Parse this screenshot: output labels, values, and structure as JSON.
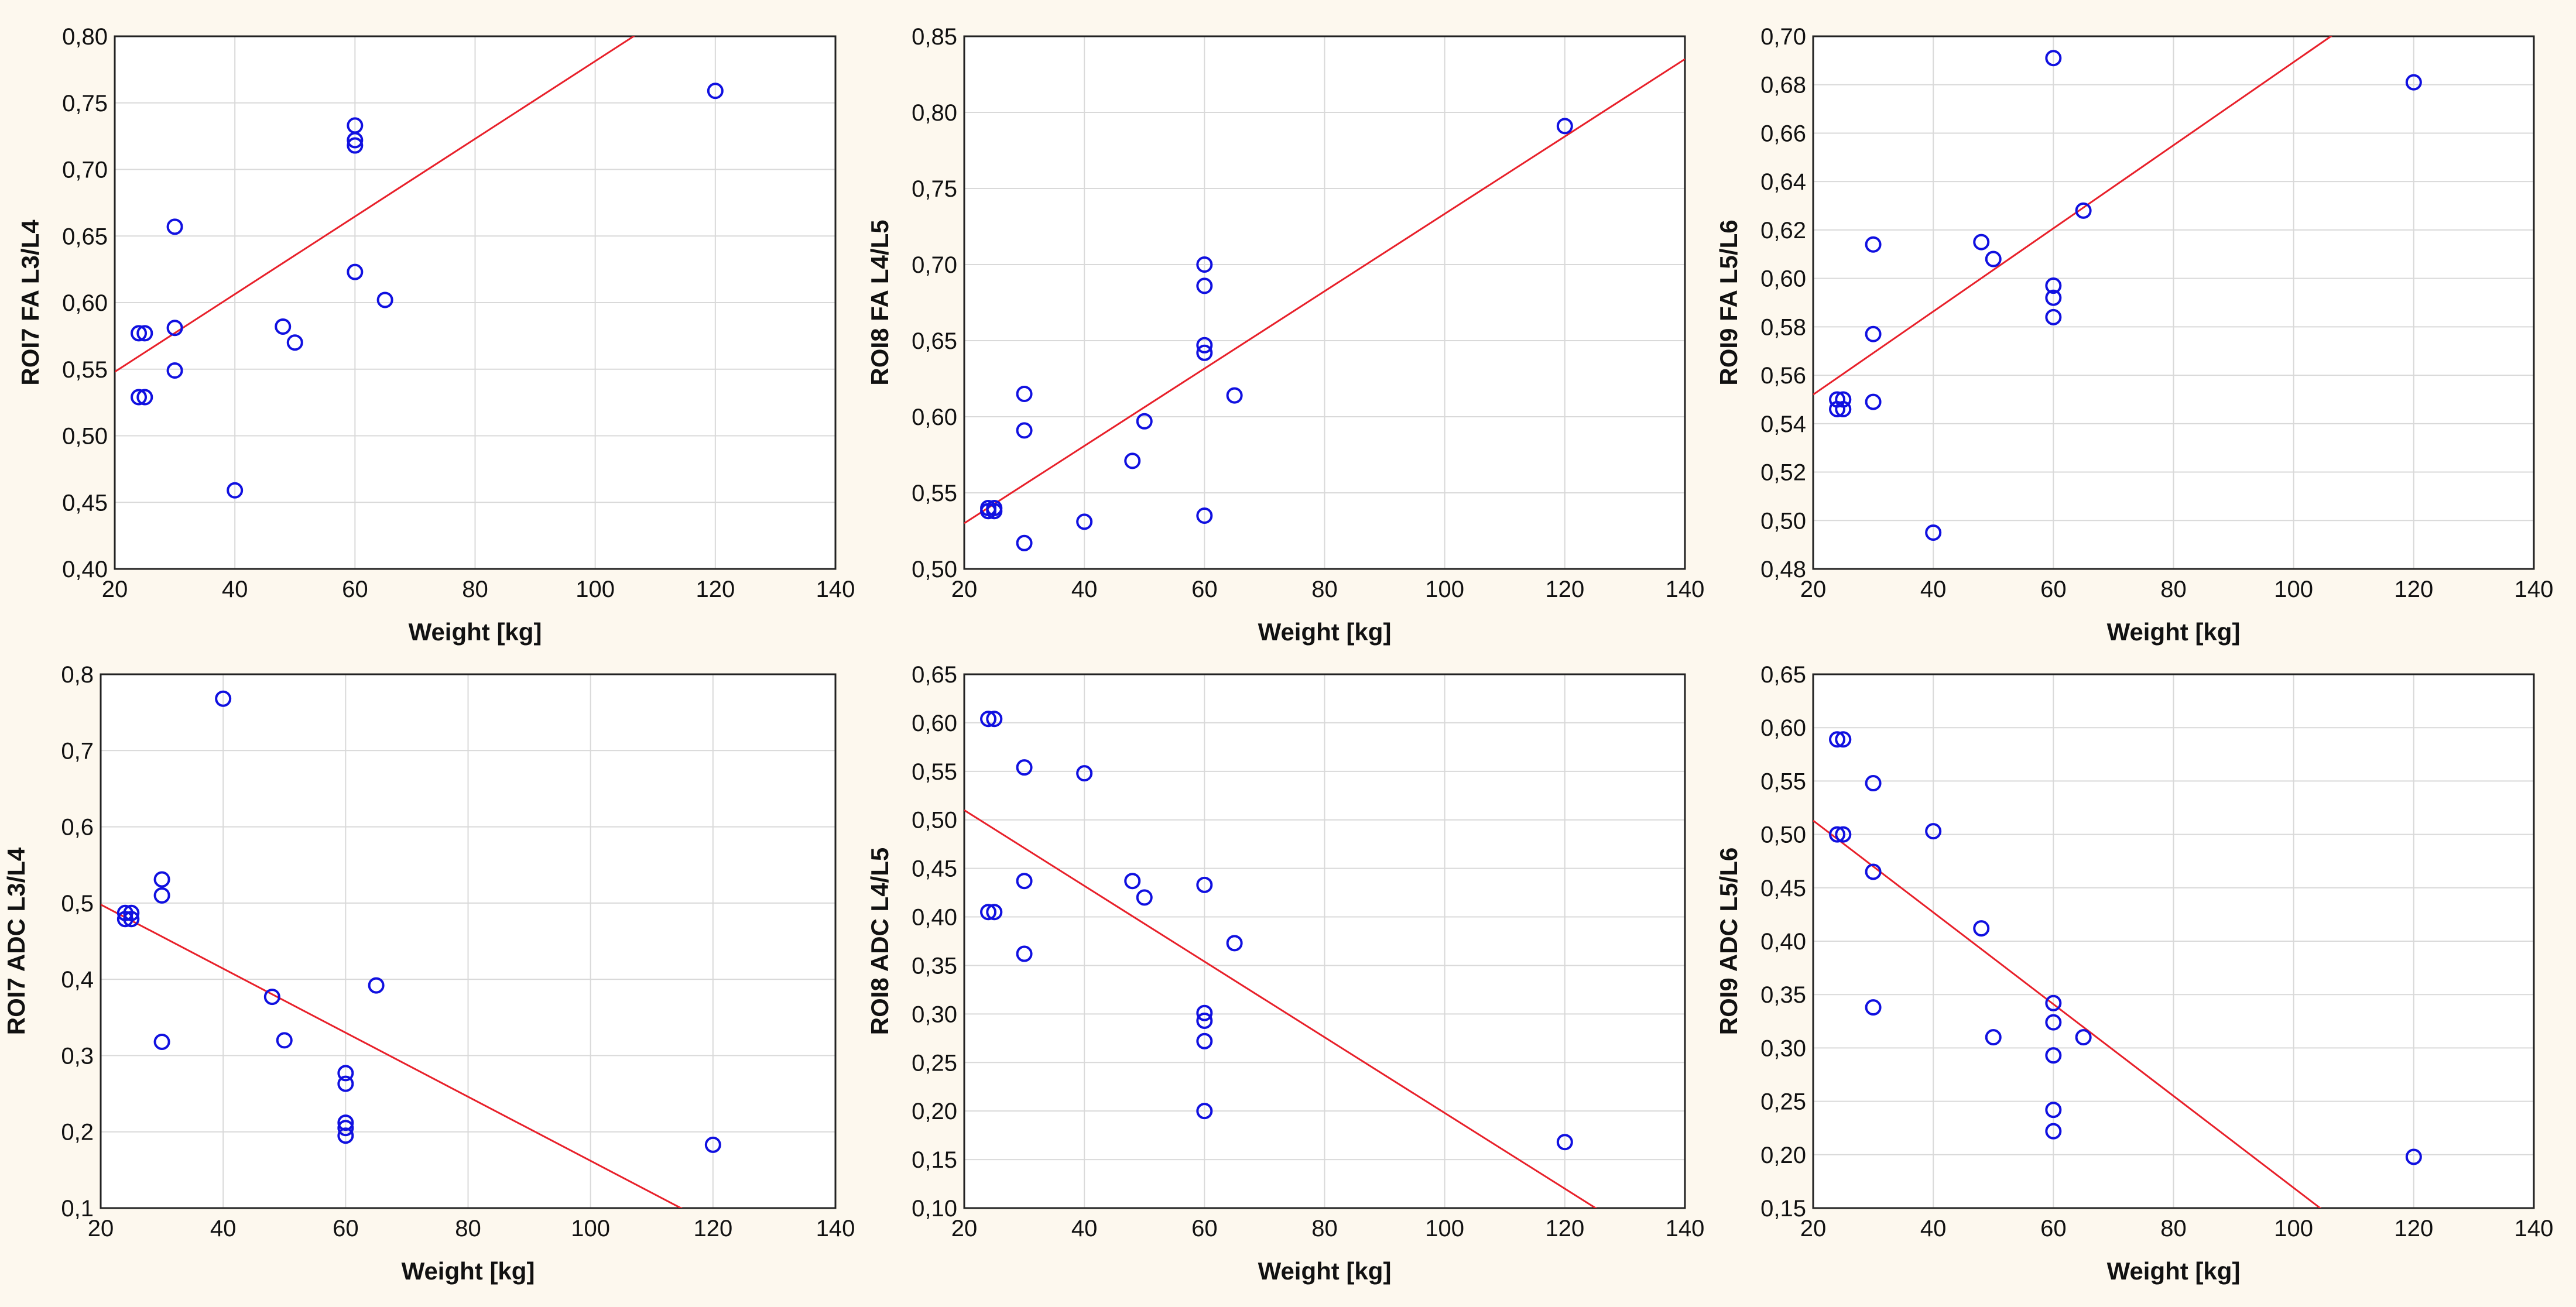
{
  "colors": {
    "background": "#fdf8ee",
    "plot_background": "#ffffff",
    "grid": "#d9d9d9",
    "marker": "#1010e0",
    "fit_line": "#e8202a"
  },
  "chart_data": [
    {
      "type": "scatter",
      "xlabel": "Weight [kg]",
      "ylabel": "ROI7 FA L3/L4",
      "xlim": [
        20,
        140
      ],
      "ylim": [
        0.4,
        0.8
      ],
      "xticks": [
        "20",
        "40",
        "60",
        "80",
        "100",
        "120",
        "140"
      ],
      "yticks": [
        "0,40",
        "0,45",
        "0,50",
        "0,55",
        "0,60",
        "0,65",
        "0,70",
        "0,75",
        "0,80"
      ],
      "grid": true,
      "points": [
        {
          "x": 24,
          "y": 0.577
        },
        {
          "x": 25,
          "y": 0.577
        },
        {
          "x": 24,
          "y": 0.529
        },
        {
          "x": 25,
          "y": 0.529
        },
        {
          "x": 30,
          "y": 0.657
        },
        {
          "x": 30,
          "y": 0.581
        },
        {
          "x": 30,
          "y": 0.549
        },
        {
          "x": 40,
          "y": 0.459
        },
        {
          "x": 48,
          "y": 0.582
        },
        {
          "x": 50,
          "y": 0.57
        },
        {
          "x": 60,
          "y": 0.733
        },
        {
          "x": 60,
          "y": 0.722
        },
        {
          "x": 60,
          "y": 0.718
        },
        {
          "x": 60,
          "y": 0.623
        },
        {
          "x": 65,
          "y": 0.602
        },
        {
          "x": 120,
          "y": 0.759
        }
      ],
      "fit_line": {
        "x1": 20,
        "y1": 0.548,
        "x2": 140,
        "y2": 0.898
      }
    },
    {
      "type": "scatter",
      "xlabel": "Weight [kg]",
      "ylabel": "ROI8 FA L4/L5",
      "xlim": [
        20,
        140
      ],
      "ylim": [
        0.5,
        0.85
      ],
      "xticks": [
        "20",
        "40",
        "60",
        "80",
        "100",
        "120",
        "140"
      ],
      "yticks": [
        "0,50",
        "0,55",
        "0,60",
        "0,65",
        "0,70",
        "0,75",
        "0,80",
        "0,85"
      ],
      "grid": true,
      "points": [
        {
          "x": 24,
          "y": 0.54
        },
        {
          "x": 25,
          "y": 0.54
        },
        {
          "x": 24,
          "y": 0.538
        },
        {
          "x": 25,
          "y": 0.538
        },
        {
          "x": 30,
          "y": 0.615
        },
        {
          "x": 30,
          "y": 0.591
        },
        {
          "x": 30,
          "y": 0.517
        },
        {
          "x": 40,
          "y": 0.531
        },
        {
          "x": 48,
          "y": 0.571
        },
        {
          "x": 50,
          "y": 0.597
        },
        {
          "x": 60,
          "y": 0.7
        },
        {
          "x": 60,
          "y": 0.686
        },
        {
          "x": 60,
          "y": 0.647
        },
        {
          "x": 60,
          "y": 0.642
        },
        {
          "x": 60,
          "y": 0.535
        },
        {
          "x": 65,
          "y": 0.614
        },
        {
          "x": 120,
          "y": 0.791
        }
      ],
      "fit_line": {
        "x1": 20,
        "y1": 0.53,
        "x2": 140,
        "y2": 0.835
      }
    },
    {
      "type": "scatter",
      "xlabel": "Weight [kg]",
      "ylabel": "ROI9 FA L5/L6",
      "xlim": [
        20,
        140
      ],
      "ylim": [
        0.48,
        0.7
      ],
      "xticks": [
        "20",
        "40",
        "60",
        "80",
        "100",
        "120",
        "140"
      ],
      "yticks": [
        "0,48",
        "0,50",
        "0,52",
        "0,54",
        "0,56",
        "0,58",
        "0,60",
        "0,62",
        "0,64",
        "0,66",
        "0,68",
        "0,70"
      ],
      "grid": true,
      "points": [
        {
          "x": 24,
          "y": 0.55
        },
        {
          "x": 25,
          "y": 0.55
        },
        {
          "x": 24,
          "y": 0.546
        },
        {
          "x": 25,
          "y": 0.546
        },
        {
          "x": 30,
          "y": 0.614
        },
        {
          "x": 30,
          "y": 0.577
        },
        {
          "x": 30,
          "y": 0.549
        },
        {
          "x": 40,
          "y": 0.495
        },
        {
          "x": 48,
          "y": 0.615
        },
        {
          "x": 50,
          "y": 0.608
        },
        {
          "x": 60,
          "y": 0.691
        },
        {
          "x": 60,
          "y": 0.597
        },
        {
          "x": 60,
          "y": 0.592
        },
        {
          "x": 60,
          "y": 0.584
        },
        {
          "x": 65,
          "y": 0.628
        },
        {
          "x": 120,
          "y": 0.681
        }
      ],
      "fit_line": {
        "x1": 20,
        "y1": 0.552,
        "x2": 140,
        "y2": 0.758
      }
    },
    {
      "type": "scatter",
      "xlabel": "Weight [kg]",
      "ylabel": "ROI7 ADC L3/L4",
      "xlim": [
        20,
        140
      ],
      "ylim": [
        0.1,
        0.8
      ],
      "xticks": [
        "20",
        "40",
        "60",
        "80",
        "100",
        "120",
        "140"
      ],
      "yticks": [
        "0,1",
        "0,2",
        "0,3",
        "0,4",
        "0,5",
        "0,6",
        "0,7",
        "0,8"
      ],
      "grid": true,
      "points": [
        {
          "x": 24,
          "y": 0.487
        },
        {
          "x": 25,
          "y": 0.487
        },
        {
          "x": 24,
          "y": 0.479
        },
        {
          "x": 25,
          "y": 0.479
        },
        {
          "x": 30,
          "y": 0.531
        },
        {
          "x": 30,
          "y": 0.51
        },
        {
          "x": 30,
          "y": 0.318
        },
        {
          "x": 40,
          "y": 0.768
        },
        {
          "x": 48,
          "y": 0.377
        },
        {
          "x": 50,
          "y": 0.32
        },
        {
          "x": 60,
          "y": 0.277
        },
        {
          "x": 60,
          "y": 0.263
        },
        {
          "x": 60,
          "y": 0.212
        },
        {
          "x": 60,
          "y": 0.205
        },
        {
          "x": 60,
          "y": 0.195
        },
        {
          "x": 65,
          "y": 0.392
        },
        {
          "x": 120,
          "y": 0.183
        }
      ],
      "fit_line": {
        "x1": 20,
        "y1": 0.498,
        "x2": 140,
        "y2": -0.006
      }
    },
    {
      "type": "scatter",
      "xlabel": "Weight [kg]",
      "ylabel": "ROI8 ADC L4/L5",
      "xlim": [
        20,
        140
      ],
      "ylim": [
        0.1,
        0.65
      ],
      "xticks": [
        "20",
        "40",
        "60",
        "80",
        "100",
        "120",
        "140"
      ],
      "yticks": [
        "0,10",
        "0,15",
        "0,20",
        "0,25",
        "0,30",
        "0,35",
        "0,40",
        "0,45",
        "0,50",
        "0,55",
        "0,60",
        "0,65"
      ],
      "grid": true,
      "points": [
        {
          "x": 24,
          "y": 0.604
        },
        {
          "x": 25,
          "y": 0.604
        },
        {
          "x": 24,
          "y": 0.405
        },
        {
          "x": 25,
          "y": 0.405
        },
        {
          "x": 30,
          "y": 0.554
        },
        {
          "x": 30,
          "y": 0.437
        },
        {
          "x": 30,
          "y": 0.362
        },
        {
          "x": 40,
          "y": 0.548
        },
        {
          "x": 48,
          "y": 0.437
        },
        {
          "x": 50,
          "y": 0.42
        },
        {
          "x": 60,
          "y": 0.433
        },
        {
          "x": 60,
          "y": 0.301
        },
        {
          "x": 60,
          "y": 0.293
        },
        {
          "x": 60,
          "y": 0.272
        },
        {
          "x": 60,
          "y": 0.2
        },
        {
          "x": 65,
          "y": 0.373
        },
        {
          "x": 120,
          "y": 0.168
        }
      ],
      "fit_line": {
        "x1": 20,
        "y1": 0.51,
        "x2": 140,
        "y2": 0.042
      }
    },
    {
      "type": "scatter",
      "xlabel": "Weight [kg]",
      "ylabel": "ROI9 ADC L5/L6",
      "xlim": [
        20,
        140
      ],
      "ylim": [
        0.15,
        0.65
      ],
      "xticks": [
        "20",
        "40",
        "60",
        "80",
        "100",
        "120",
        "140"
      ],
      "yticks": [
        "0,15",
        "0,20",
        "0,25",
        "0,30",
        "0,35",
        "0,40",
        "0,45",
        "0,50",
        "0,55",
        "0,60",
        "0,65"
      ],
      "grid": true,
      "points": [
        {
          "x": 24,
          "y": 0.589
        },
        {
          "x": 25,
          "y": 0.589
        },
        {
          "x": 24,
          "y": 0.5
        },
        {
          "x": 25,
          "y": 0.5
        },
        {
          "x": 30,
          "y": 0.548
        },
        {
          "x": 30,
          "y": 0.465
        },
        {
          "x": 30,
          "y": 0.338
        },
        {
          "x": 40,
          "y": 0.503
        },
        {
          "x": 48,
          "y": 0.412
        },
        {
          "x": 50,
          "y": 0.31
        },
        {
          "x": 60,
          "y": 0.342
        },
        {
          "x": 60,
          "y": 0.324
        },
        {
          "x": 60,
          "y": 0.293
        },
        {
          "x": 60,
          "y": 0.242
        },
        {
          "x": 60,
          "y": 0.222
        },
        {
          "x": 65,
          "y": 0.31
        },
        {
          "x": 120,
          "y": 0.198
        }
      ],
      "fit_line": {
        "x1": 20,
        "y1": 0.513,
        "x2": 140,
        "y2": -0.003
      }
    }
  ]
}
